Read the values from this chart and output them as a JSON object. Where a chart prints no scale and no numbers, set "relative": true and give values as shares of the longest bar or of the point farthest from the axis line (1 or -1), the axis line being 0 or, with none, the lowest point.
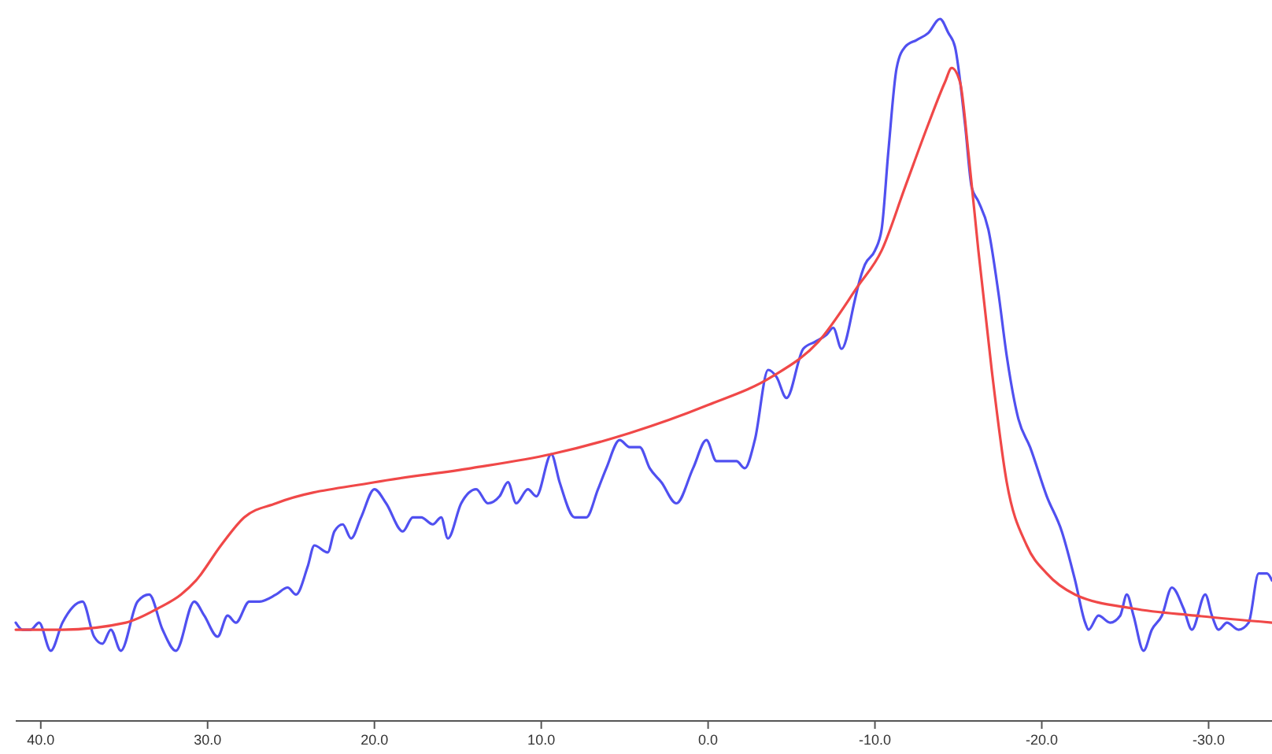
{
  "chart_data": {
    "type": "line",
    "relative": true,
    "xlim": [
      41.5,
      -33.8
    ],
    "xticks": [
      {
        "value": 40,
        "label": "40.0"
      },
      {
        "value": 30,
        "label": "30.0"
      },
      {
        "value": 20,
        "label": "20.0"
      },
      {
        "value": 10,
        "label": "10.0"
      },
      {
        "value": 0,
        "label": "0.0"
      },
      {
        "value": -10,
        "label": "-10.0"
      },
      {
        "value": -20,
        "label": "-20.0"
      },
      {
        "value": -30,
        "label": "-30.0"
      }
    ],
    "series": [
      {
        "color": "#5050f0",
        "x": [
          41.5,
          41.1,
          40.6,
          40.1,
          39.4,
          38.7,
          37.5,
          36.8,
          36.3,
          35.8,
          35.2,
          34.2,
          33.5,
          32.7,
          31.9,
          30.8,
          30.2,
          29.4,
          28.8,
          28.3,
          27.5,
          26.9,
          25.9,
          25.2,
          24.7,
          24.0,
          23.6,
          22.8,
          22.4,
          21.9,
          21.4,
          20.8,
          20.0,
          19.3,
          18.3,
          17.7,
          17.2,
          16.5,
          16.0,
          15.6,
          14.8,
          13.9,
          13.2,
          12.5,
          12.0,
          11.5,
          10.8,
          10.3,
          9.4,
          8.9,
          8.0,
          7.3,
          6.6,
          6.1,
          5.3,
          4.7,
          4.1,
          3.5,
          2.8,
          1.9,
          0.9,
          0.1,
          -0.5,
          -1.1,
          -1.7,
          -2.2,
          -2.8,
          -3.6,
          -4.1,
          -4.7,
          -5.7,
          -6.4,
          -7.1,
          -7.5,
          -8.0,
          -8.8,
          -9.0,
          -9.4,
          -10.0,
          -10.4,
          -10.8,
          -11.3,
          -11.8,
          -12.5,
          -13.2,
          -13.9,
          -14.4,
          -14.8,
          -15.4,
          -15.8,
          -16.2,
          -16.8,
          -17.4,
          -17.9,
          -18.6,
          -19.3,
          -20.3,
          -21.2,
          -22.0,
          -22.6,
          -22.8,
          -23.4,
          -24.1,
          -24.7,
          -25.1,
          -25.5,
          -26.1,
          -26.6,
          -27.2,
          -27.8,
          -28.5,
          -29.0,
          -29.8,
          -30.2,
          -30.6,
          -31.1,
          -31.8,
          -32.4,
          -33.0,
          -33.5,
          -33.8
        ],
        "values": [
          0.14,
          0.13,
          0.13,
          0.14,
          0.1,
          0.14,
          0.17,
          0.12,
          0.11,
          0.13,
          0.1,
          0.17,
          0.18,
          0.13,
          0.1,
          0.17,
          0.15,
          0.12,
          0.15,
          0.14,
          0.17,
          0.17,
          0.18,
          0.19,
          0.18,
          0.22,
          0.25,
          0.24,
          0.27,
          0.28,
          0.26,
          0.29,
          0.33,
          0.31,
          0.27,
          0.29,
          0.29,
          0.28,
          0.29,
          0.26,
          0.31,
          0.33,
          0.31,
          0.32,
          0.34,
          0.31,
          0.33,
          0.32,
          0.38,
          0.34,
          0.29,
          0.29,
          0.33,
          0.36,
          0.4,
          0.39,
          0.39,
          0.36,
          0.34,
          0.31,
          0.36,
          0.4,
          0.37,
          0.37,
          0.37,
          0.36,
          0.4,
          0.5,
          0.49,
          0.46,
          0.53,
          0.54,
          0.55,
          0.56,
          0.53,
          0.6,
          0.62,
          0.65,
          0.67,
          0.7,
          0.81,
          0.93,
          0.96,
          0.97,
          0.98,
          1.0,
          0.98,
          0.96,
          0.85,
          0.76,
          0.74,
          0.7,
          0.61,
          0.52,
          0.43,
          0.39,
          0.32,
          0.27,
          0.2,
          0.14,
          0.13,
          0.15,
          0.14,
          0.15,
          0.18,
          0.15,
          0.1,
          0.13,
          0.15,
          0.19,
          0.16,
          0.13,
          0.18,
          0.15,
          0.13,
          0.14,
          0.13,
          0.14,
          0.21,
          0.21,
          0.2
        ]
      },
      {
        "color": "#f04848",
        "x": [
          41.5,
          38.7,
          34.9,
          33.0,
          31.6,
          30.7,
          29.2,
          27.8,
          25.9,
          20.0,
          14.2,
          9.4,
          4.7,
          0.0,
          -3.8,
          -6.6,
          -9.0,
          -10.4,
          -11.8,
          -13.2,
          -14.2,
          -14.6,
          -15.1,
          -15.6,
          -16.2,
          -17.0,
          -17.9,
          -19.1,
          -20.3,
          -22.0,
          -25.5,
          -29.2,
          -33.8
        ],
        "values": [
          0.13,
          0.13,
          0.14,
          0.16,
          0.18,
          0.2,
          0.25,
          0.29,
          0.31,
          0.34,
          0.36,
          0.38,
          0.41,
          0.45,
          0.49,
          0.54,
          0.62,
          0.67,
          0.76,
          0.85,
          0.91,
          0.93,
          0.91,
          0.81,
          0.67,
          0.5,
          0.34,
          0.25,
          0.21,
          0.18,
          0.16,
          0.15,
          0.14
        ]
      }
    ]
  }
}
